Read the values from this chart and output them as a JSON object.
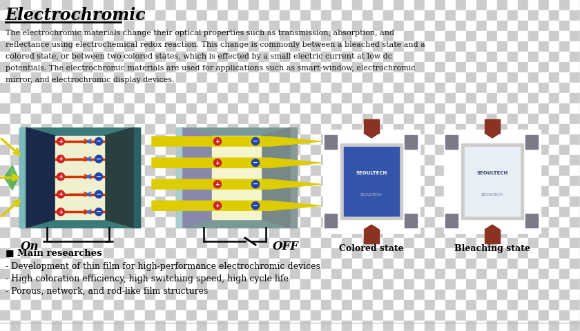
{
  "title": "Electrochromic",
  "body_lines": [
    "The electrochromic materials change their optical properties such as transmission, absorption, and",
    "reflectance using electrochemical redox reaction. This change is commonly between a bleached state and a",
    "colored state, or between two colored states, which is effected by a small electric current at low dc",
    "potentials. The electrochromic materials are used for applications such as smart-window, electrochromic",
    "mirror, and electrochromic display devices."
  ],
  "main_research_header": "■ Main researches",
  "bullet1": "- Development of thin film for high-performance electrochromic devices",
  "bullet2": "- High coloration efficiency, high switching speed, high cycle life",
  "bullet3": "- Porous, network, and rod-like film structures",
  "on_label": "On",
  "off_label": "OFF",
  "colored_state_label": "Colored state",
  "bleaching_state_label": "Bleaching state",
  "checker_dark": "#cccccc",
  "checker_light": "#ffffff",
  "checker_size": 15
}
